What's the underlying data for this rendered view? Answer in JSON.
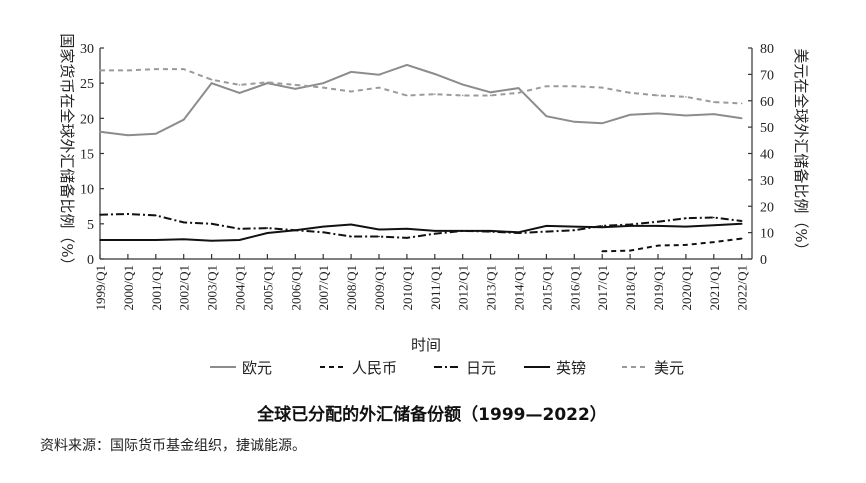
{
  "chart_data": {
    "type": "line",
    "title": "全球已分配的外汇储备份额（1999—2022）",
    "source": "资料来源：国际货币基金组织，捷诚能源。",
    "xlabel": "时间",
    "ylabel_left": "国家货币在全球外汇储备比例（%）",
    "ylabel_right": "美元在全球外汇储备比例（%）",
    "ylim_left": [
      0,
      30
    ],
    "yticks_left": [
      "0",
      "5",
      "10",
      "15",
      "20",
      "25",
      "30"
    ],
    "ylim_right": [
      0,
      80
    ],
    "yticks_right": [
      "0",
      "10",
      "20",
      "30",
      "40",
      "50",
      "60",
      "70",
      "80"
    ],
    "x_tick_labels": [
      "1999/Q1",
      "2000/Q1",
      "2001/Q1",
      "2002/Q1",
      "2003/Q1",
      "2004/Q1",
      "2005/Q1",
      "2006/Q1",
      "2007/Q1",
      "2008/Q1",
      "2009/Q1",
      "2010/Q1",
      "2011/Q1",
      "2012/Q1",
      "2013/Q1",
      "2014/Q1",
      "2015/Q1",
      "2016/Q1",
      "2017/Q1",
      "2018/Q1",
      "2019/Q1",
      "2020/Q1",
      "2021/Q1",
      "2022/Q1"
    ],
    "x_years": [
      1999,
      2000,
      2001,
      2002,
      2003,
      2004,
      2005,
      2006,
      2007,
      2008,
      2009,
      2010,
      2011,
      2012,
      2013,
      2014,
      2015,
      2016,
      2017,
      2018,
      2019,
      2020,
      2021,
      2022
    ],
    "legend": "bottom",
    "series": [
      {
        "name": "欧元",
        "axis": "left",
        "color": "#8c8c8c",
        "style": "solid",
        "values": [
          18.1,
          17.6,
          17.8,
          19.8,
          25.0,
          23.6,
          25.0,
          24.2,
          25.0,
          26.6,
          26.2,
          27.6,
          26.3,
          24.8,
          23.7,
          24.3,
          20.3,
          19.5,
          19.3,
          20.5,
          20.7,
          20.4,
          20.6,
          20.0
        ]
      },
      {
        "name": "人民币",
        "axis": "left",
        "color": "#111111",
        "style": "dash",
        "values": [
          null,
          null,
          null,
          null,
          null,
          null,
          null,
          null,
          null,
          null,
          null,
          null,
          null,
          null,
          null,
          null,
          null,
          null,
          1.1,
          1.2,
          1.9,
          2.0,
          2.4,
          2.9
        ]
      },
      {
        "name": "日元",
        "axis": "left",
        "color": "#111111",
        "style": "dashdot",
        "values": [
          6.3,
          6.4,
          6.2,
          5.2,
          5.0,
          4.3,
          4.4,
          4.1,
          3.8,
          3.2,
          3.2,
          3.0,
          3.6,
          4.0,
          3.9,
          3.7,
          3.9,
          4.1,
          4.7,
          4.9,
          5.3,
          5.8,
          5.9,
          5.4
        ]
      },
      {
        "name": "英镑",
        "axis": "left",
        "color": "#111111",
        "style": "solid",
        "values": [
          2.7,
          2.7,
          2.7,
          2.8,
          2.6,
          2.7,
          3.7,
          4.1,
          4.6,
          4.9,
          4.2,
          4.3,
          4.0,
          4.0,
          4.0,
          3.8,
          4.7,
          4.6,
          4.5,
          4.7,
          4.7,
          4.6,
          4.8,
          5.0
        ]
      },
      {
        "name": "美元",
        "axis": "right",
        "color": "#9a9a9a",
        "style": "dash",
        "values": [
          71.5,
          71.5,
          72.0,
          72.0,
          68.0,
          66.0,
          67.0,
          66.0,
          65.0,
          63.5,
          65.0,
          62.0,
          62.5,
          62.0,
          62.0,
          63.0,
          65.5,
          65.5,
          65.0,
          63.0,
          62.0,
          61.5,
          59.5,
          59.0
        ]
      }
    ]
  }
}
